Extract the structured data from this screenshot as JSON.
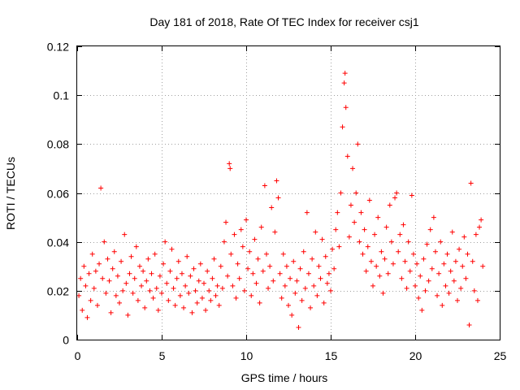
{
  "chart_data": {
    "type": "scatter",
    "title": "Day 181 of 2018, Rate Of TEC Index for receiver csj1",
    "xlabel": "GPS time / hours",
    "ylabel": "ROTI / TECUs",
    "xlim": [
      0,
      25
    ],
    "ylim": [
      0,
      0.12
    ],
    "xticks": [
      0,
      5,
      10,
      15,
      20,
      25
    ],
    "xtick_labels": [
      "0",
      "5",
      "10",
      "15",
      "20",
      "25"
    ],
    "yticks": [
      0,
      0.02,
      0.04,
      0.06,
      0.08,
      0.1,
      0.12
    ],
    "ytick_labels": [
      "0",
      "0.02",
      "0.04",
      "0.06",
      "0.08",
      "0.1",
      "0.12"
    ],
    "grid": true,
    "marker": "plus",
    "color": "#ff0000",
    "series": [
      {
        "name": "ROTI",
        "points": [
          [
            0.1,
            0.018
          ],
          [
            0.2,
            0.025
          ],
          [
            0.3,
            0.012
          ],
          [
            0.4,
            0.03
          ],
          [
            0.5,
            0.022
          ],
          [
            0.6,
            0.009
          ],
          [
            0.7,
            0.027
          ],
          [
            0.8,
            0.016
          ],
          [
            0.9,
            0.035
          ],
          [
            1.0,
            0.021
          ],
          [
            1.1,
            0.028
          ],
          [
            1.2,
            0.014
          ],
          [
            1.3,
            0.031
          ],
          [
            1.4,
            0.062
          ],
          [
            1.5,
            0.025
          ],
          [
            1.6,
            0.04
          ],
          [
            1.7,
            0.019
          ],
          [
            1.8,
            0.033
          ],
          [
            1.9,
            0.024
          ],
          [
            2.0,
            0.011
          ],
          [
            2.1,
            0.029
          ],
          [
            2.2,
            0.036
          ],
          [
            2.3,
            0.018
          ],
          [
            2.4,
            0.026
          ],
          [
            2.5,
            0.015
          ],
          [
            2.6,
            0.032
          ],
          [
            2.7,
            0.02
          ],
          [
            2.8,
            0.043
          ],
          [
            2.9,
            0.023
          ],
          [
            3.0,
            0.01
          ],
          [
            3.1,
            0.027
          ],
          [
            3.2,
            0.034
          ],
          [
            3.3,
            0.019
          ],
          [
            3.4,
            0.025
          ],
          [
            3.5,
            0.038
          ],
          [
            3.6,
            0.016
          ],
          [
            3.7,
            0.03
          ],
          [
            3.8,
            0.022
          ],
          [
            3.9,
            0.028
          ],
          [
            4.0,
            0.013
          ],
          [
            4.1,
            0.024
          ],
          [
            4.2,
            0.033
          ],
          [
            4.3,
            0.02
          ],
          [
            4.4,
            0.027
          ],
          [
            4.5,
            0.017
          ],
          [
            4.6,
            0.035
          ],
          [
            4.7,
            0.021
          ],
          [
            4.8,
            0.012
          ],
          [
            4.9,
            0.026
          ],
          [
            5.0,
            0.019
          ],
          [
            5.1,
            0.031
          ],
          [
            5.2,
            0.04
          ],
          [
            5.3,
            0.023
          ],
          [
            5.4,
            0.016
          ],
          [
            5.5,
            0.028
          ],
          [
            5.6,
            0.037
          ],
          [
            5.7,
            0.021
          ],
          [
            5.8,
            0.014
          ],
          [
            5.9,
            0.025
          ],
          [
            6.0,
            0.032
          ],
          [
            6.1,
            0.018
          ],
          [
            6.2,
            0.027
          ],
          [
            6.3,
            0.013
          ],
          [
            6.4,
            0.022
          ],
          [
            6.5,
            0.034
          ],
          [
            6.6,
            0.019
          ],
          [
            6.7,
            0.026
          ],
          [
            6.8,
            0.011
          ],
          [
            6.9,
            0.029
          ],
          [
            7.0,
            0.02
          ],
          [
            7.1,
            0.015
          ],
          [
            7.2,
            0.024
          ],
          [
            7.3,
            0.031
          ],
          [
            7.4,
            0.017
          ],
          [
            7.5,
            0.023
          ],
          [
            7.6,
            0.012
          ],
          [
            7.7,
            0.028
          ],
          [
            7.8,
            0.02
          ],
          [
            7.9,
            0.016
          ],
          [
            8.0,
            0.025
          ],
          [
            8.1,
            0.033
          ],
          [
            8.2,
            0.018
          ],
          [
            8.3,
            0.022
          ],
          [
            8.4,
            0.014
          ],
          [
            8.5,
            0.03
          ],
          [
            8.6,
            0.021
          ],
          [
            8.7,
            0.04
          ],
          [
            8.8,
            0.048
          ],
          [
            8.9,
            0.026
          ],
          [
            9.0,
            0.072
          ],
          [
            9.05,
            0.07
          ],
          [
            9.1,
            0.035
          ],
          [
            9.2,
            0.022
          ],
          [
            9.3,
            0.043
          ],
          [
            9.4,
            0.017
          ],
          [
            9.5,
            0.031
          ],
          [
            9.6,
            0.025
          ],
          [
            9.7,
            0.045
          ],
          [
            9.8,
            0.038
          ],
          [
            9.9,
            0.02
          ],
          [
            10.0,
            0.049
          ],
          [
            10.1,
            0.029
          ],
          [
            10.2,
            0.036
          ],
          [
            10.3,
            0.018
          ],
          [
            10.4,
            0.027
          ],
          [
            10.5,
            0.041
          ],
          [
            10.6,
            0.023
          ],
          [
            10.7,
            0.033
          ],
          [
            10.8,
            0.015
          ],
          [
            10.9,
            0.046
          ],
          [
            11.0,
            0.028
          ],
          [
            11.1,
            0.063
          ],
          [
            11.2,
            0.035
          ],
          [
            11.3,
            0.021
          ],
          [
            11.4,
            0.03
          ],
          [
            11.5,
            0.054
          ],
          [
            11.6,
            0.024
          ],
          [
            11.7,
            0.044
          ],
          [
            11.8,
            0.065
          ],
          [
            11.9,
            0.058
          ],
          [
            12.0,
            0.027
          ],
          [
            12.1,
            0.017
          ],
          [
            12.2,
            0.035
          ],
          [
            12.3,
            0.022
          ],
          [
            12.4,
            0.03
          ],
          [
            12.5,
            0.014
          ],
          [
            12.6,
            0.025
          ],
          [
            12.7,
            0.01
          ],
          [
            12.8,
            0.032
          ],
          [
            12.9,
            0.019
          ],
          [
            13.0,
            0.024
          ],
          [
            13.1,
            0.005
          ],
          [
            13.2,
            0.029
          ],
          [
            13.3,
            0.016
          ],
          [
            13.4,
            0.036
          ],
          [
            13.5,
            0.021
          ],
          [
            13.6,
            0.052
          ],
          [
            13.7,
            0.027
          ],
          [
            13.8,
            0.013
          ],
          [
            13.9,
            0.033
          ],
          [
            14.0,
            0.022
          ],
          [
            14.1,
            0.044
          ],
          [
            14.2,
            0.018
          ],
          [
            14.3,
            0.03
          ],
          [
            14.4,
            0.025
          ],
          [
            14.5,
            0.041
          ],
          [
            14.6,
            0.015
          ],
          [
            14.7,
            0.034
          ],
          [
            14.8,
            0.023
          ],
          [
            14.9,
            0.027
          ],
          [
            15.0,
            0.02
          ],
          [
            15.1,
            0.037
          ],
          [
            15.2,
            0.029
          ],
          [
            15.3,
            0.045
          ],
          [
            15.4,
            0.052
          ],
          [
            15.5,
            0.038
          ],
          [
            15.6,
            0.06
          ],
          [
            15.7,
            0.087
          ],
          [
            15.8,
            0.105
          ],
          [
            15.85,
            0.109
          ],
          [
            15.9,
            0.095
          ],
          [
            16.0,
            0.075
          ],
          [
            16.1,
            0.042
          ],
          [
            16.2,
            0.055
          ],
          [
            16.3,
            0.07
          ],
          [
            16.4,
            0.048
          ],
          [
            16.5,
            0.06
          ],
          [
            16.6,
            0.08
          ],
          [
            16.7,
            0.04
          ],
          [
            16.8,
            0.052
          ],
          [
            16.9,
            0.035
          ],
          [
            17.0,
            0.045
          ],
          [
            17.1,
            0.028
          ],
          [
            17.2,
            0.038
          ],
          [
            17.3,
            0.057
          ],
          [
            17.4,
            0.032
          ],
          [
            17.5,
            0.022
          ],
          [
            17.6,
            0.043
          ],
          [
            17.7,
            0.03
          ],
          [
            17.8,
            0.05
          ],
          [
            17.9,
            0.026
          ],
          [
            18.0,
            0.036
          ],
          [
            18.1,
            0.019
          ],
          [
            18.2,
            0.033
          ],
          [
            18.3,
            0.046
          ],
          [
            18.4,
            0.027
          ],
          [
            18.5,
            0.055
          ],
          [
            18.6,
            0.04
          ],
          [
            18.7,
            0.031
          ],
          [
            18.8,
            0.058
          ],
          [
            18.9,
            0.06
          ],
          [
            19.0,
            0.036
          ],
          [
            19.1,
            0.043
          ],
          [
            19.2,
            0.025
          ],
          [
            19.3,
            0.047
          ],
          [
            19.4,
            0.032
          ],
          [
            19.5,
            0.021
          ],
          [
            19.6,
            0.04
          ],
          [
            19.7,
            0.028
          ],
          [
            19.8,
            0.059
          ],
          [
            19.9,
            0.035
          ],
          [
            20.0,
            0.022
          ],
          [
            20.1,
            0.031
          ],
          [
            20.2,
            0.017
          ],
          [
            20.3,
            0.026
          ],
          [
            20.4,
            0.012
          ],
          [
            20.5,
            0.033
          ],
          [
            20.6,
            0.02
          ],
          [
            20.7,
            0.039
          ],
          [
            20.8,
            0.024
          ],
          [
            20.9,
            0.045
          ],
          [
            21.0,
            0.029
          ],
          [
            21.1,
            0.05
          ],
          [
            21.2,
            0.036
          ],
          [
            21.3,
            0.018
          ],
          [
            21.4,
            0.027
          ],
          [
            21.5,
            0.04
          ],
          [
            21.6,
            0.014
          ],
          [
            21.7,
            0.031
          ],
          [
            21.8,
            0.022
          ],
          [
            21.9,
            0.035
          ],
          [
            22.0,
            0.019
          ],
          [
            22.1,
            0.028
          ],
          [
            22.2,
            0.044
          ],
          [
            22.3,
            0.024
          ],
          [
            22.4,
            0.032
          ],
          [
            22.5,
            0.016
          ],
          [
            22.6,
            0.037
          ],
          [
            22.7,
            0.021
          ],
          [
            22.8,
            0.03
          ],
          [
            22.9,
            0.042
          ],
          [
            23.0,
            0.025
          ],
          [
            23.1,
            0.035
          ],
          [
            23.2,
            0.006
          ],
          [
            23.3,
            0.064
          ],
          [
            23.4,
            0.032
          ],
          [
            23.5,
            0.02
          ],
          [
            23.6,
            0.043
          ],
          [
            23.7,
            0.016
          ],
          [
            23.8,
            0.046
          ],
          [
            23.9,
            0.049
          ],
          [
            24.0,
            0.03
          ]
        ]
      }
    ]
  }
}
